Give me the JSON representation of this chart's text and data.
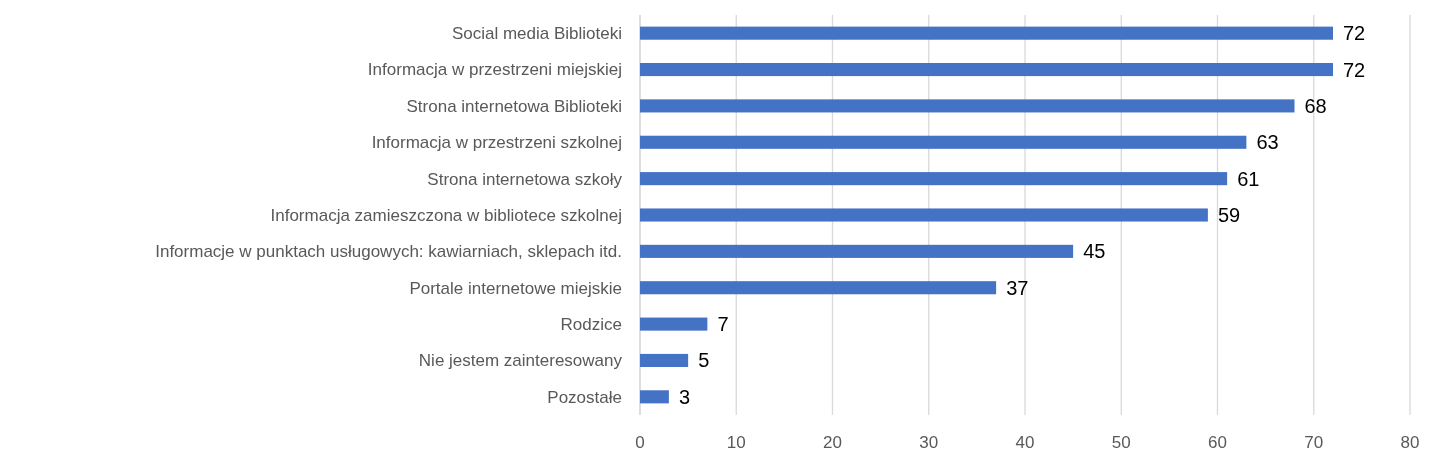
{
  "chart_data": {
    "type": "bar",
    "orientation": "horizontal",
    "categories": [
      "Social media Biblioteki",
      "Informacja w przestrzeni miejskiej",
      "Strona internetowa Biblioteki",
      "Informacja w przestrzeni szkolnej",
      "Strona internetowa szkoły",
      "Informacja zamieszczona w bibliotece szkolnej",
      "Informacje w punktach usługowych: kawiarniach, sklepach itd.",
      "Portale internetowe miejskie",
      "Rodzice",
      "Nie jestem zainteresowany",
      "Pozostałe"
    ],
    "values": [
      72,
      72,
      68,
      63,
      61,
      59,
      45,
      37,
      7,
      5,
      3
    ],
    "color": "#4472c4",
    "xlim": [
      0,
      80
    ],
    "xticks": [
      0,
      10,
      20,
      30,
      40,
      50,
      60,
      70,
      80
    ],
    "grid": "x",
    "data_labels": true
  }
}
